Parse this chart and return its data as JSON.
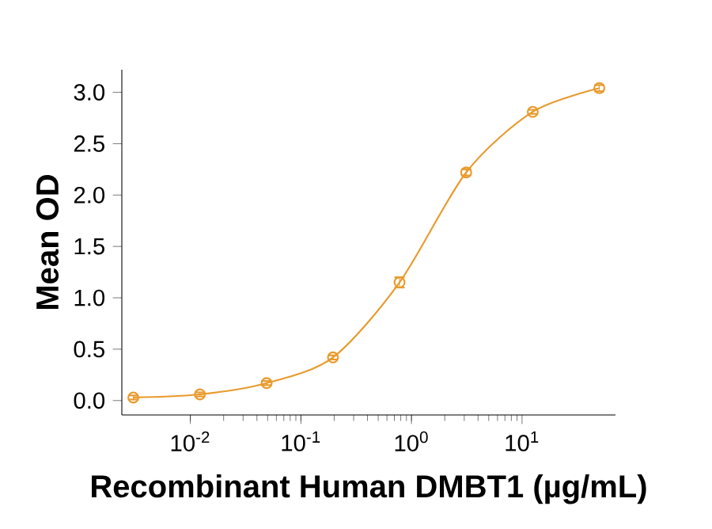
{
  "chart_data": {
    "type": "line",
    "xlabel": "Recombinant Human DMBT1 (µg/mL)",
    "ylabel": "Mean OD",
    "log": "x",
    "marker": "circle",
    "line_style": "solid",
    "grid": false,
    "xlim": [
      0.0024,
      70
    ],
    "ylim": [
      -0.14,
      3.22
    ],
    "xticks": [
      {
        "value": 0.01,
        "label": "10$^{-2}$"
      },
      {
        "value": 0.1,
        "label": "10$^{-1}$"
      },
      {
        "value": 1,
        "label": "10$^{0}$"
      },
      {
        "value": 10,
        "label": "10$^{1}$"
      }
    ],
    "yticks": [
      {
        "value": 0,
        "label": "0.0"
      },
      {
        "value": 0.5,
        "label": "0.5"
      },
      {
        "value": 1,
        "label": "1.0"
      },
      {
        "value": 1.5,
        "label": "1.5"
      },
      {
        "value": 2,
        "label": "2.0"
      },
      {
        "value": 2.5,
        "label": "2.5"
      },
      {
        "value": 3,
        "label": "3.0"
      }
    ],
    "series": [
      {
        "color": "#e89a2c",
        "x": [
          0.00305,
          0.0122,
          0.049,
          0.195,
          0.78,
          3.125,
          12.5,
          50
        ],
        "values": [
          0.03,
          0.06,
          0.17,
          0.42,
          1.15,
          2.22,
          2.81,
          3.04
        ],
        "errors": [
          0.02,
          0.02,
          0.02,
          0.02,
          0.05,
          0.03,
          0.02,
          0.03
        ]
      }
    ]
  }
}
